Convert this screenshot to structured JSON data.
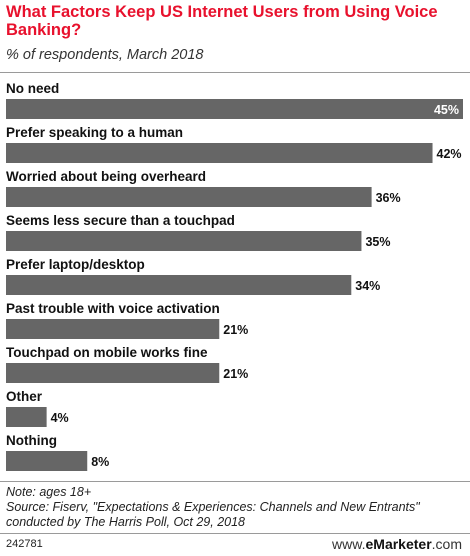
{
  "header": {
    "title": "What Factors Keep US Internet Users from Using Voice Banking?",
    "subtitle": "% of respondents, March 2018"
  },
  "chart_data": {
    "type": "bar",
    "orientation": "horizontal",
    "categories": [
      "No need",
      "Prefer speaking to a human",
      "Worried about being overheard",
      "Seems less secure than a touchpad",
      "Prefer laptop/desktop",
      "Past trouble with voice activation",
      "Touchpad on mobile works fine",
      "Other",
      "Nothing"
    ],
    "values": [
      45,
      42,
      36,
      35,
      34,
      21,
      21,
      4,
      8
    ],
    "value_labels": [
      "45%",
      "42%",
      "36%",
      "35%",
      "34%",
      "21%",
      "21%",
      "4%",
      "8%"
    ],
    "xlim": [
      0,
      45
    ],
    "bar_color": "#666666",
    "grid": false
  },
  "footer": {
    "note": "Note: ages 18+",
    "source_line1": "Source: Fiserv, \"Expectations & Experiences: Channels and New Entrants\"",
    "source_line2": "conducted by The Harris Poll, Oct 29, 2018",
    "chart_id": "242781",
    "brand_prefix": "www.",
    "brand_name": "eMarketer",
    "brand_suffix": ".com"
  },
  "colors": {
    "title": "#e8112d",
    "bar": "#666666",
    "value_inside": "#ffffff",
    "value_outside": "#111111"
  }
}
